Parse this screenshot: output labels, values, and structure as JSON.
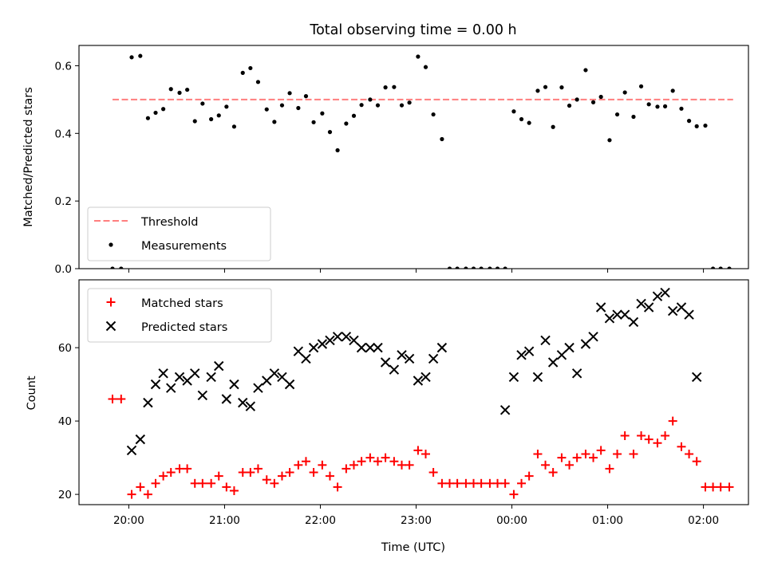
{
  "figure": {
    "title": "Total observing time = 0.00 h",
    "xlabel": "Time (UTC)",
    "x_ticks": [
      "20:00",
      "21:00",
      "22:00",
      "23:00",
      "00:00",
      "01:00",
      "02:00"
    ]
  },
  "chart_data": [
    {
      "type": "scatter",
      "title": "Total observing time = 0.00 h",
      "ylabel": "Matched/Predicted stars",
      "xlabel": "",
      "x_unit": "hours since 19:00 UTC",
      "xlim": [
        19.48,
        26.47
      ],
      "ylim": [
        0,
        0.66
      ],
      "y_ticks": [
        "0.0",
        "0.2",
        "0.4",
        "0.6"
      ],
      "y_tick_values": [
        0,
        0.2,
        0.4,
        0.6
      ],
      "legend": {
        "placement": "lower-left",
        "entries": [
          "Threshold",
          "Measurements"
        ]
      },
      "threshold": {
        "name": "Threshold",
        "value": 0.5,
        "x_range": [
          19.83,
          26.31
        ],
        "color": "#ff7f7f"
      },
      "series": [
        {
          "name": "Measurements",
          "color": "#000000",
          "points": [
            [
              19.83,
              0.0
            ],
            [
              19.92,
              0.0
            ],
            [
              20.03,
              0.625
            ],
            [
              20.12,
              0.629
            ],
            [
              20.2,
              0.445
            ],
            [
              20.28,
              0.461
            ],
            [
              20.36,
              0.472
            ],
            [
              20.44,
              0.531
            ],
            [
              20.53,
              0.52
            ],
            [
              20.61,
              0.529
            ],
            [
              20.69,
              0.436
            ],
            [
              20.77,
              0.488
            ],
            [
              20.86,
              0.442
            ],
            [
              20.94,
              0.453
            ],
            [
              21.02,
              0.479
            ],
            [
              21.1,
              0.42
            ],
            [
              21.19,
              0.579
            ],
            [
              21.27,
              0.593
            ],
            [
              21.35,
              0.552
            ],
            [
              21.44,
              0.471
            ],
            [
              21.52,
              0.434
            ],
            [
              21.6,
              0.483
            ],
            [
              21.68,
              0.519
            ],
            [
              21.77,
              0.475
            ],
            [
              21.85,
              0.51
            ],
            [
              21.93,
              0.433
            ],
            [
              22.02,
              0.459
            ],
            [
              22.1,
              0.404
            ],
            [
              22.18,
              0.35
            ],
            [
              22.27,
              0.429
            ],
            [
              22.35,
              0.452
            ],
            [
              22.43,
              0.484
            ],
            [
              22.52,
              0.5
            ],
            [
              22.6,
              0.483
            ],
            [
              22.68,
              0.536
            ],
            [
              22.77,
              0.537
            ],
            [
              22.85,
              0.483
            ],
            [
              22.93,
              0.491
            ],
            [
              23.02,
              0.627
            ],
            [
              23.1,
              0.596
            ],
            [
              23.18,
              0.456
            ],
            [
              23.27,
              0.383
            ],
            [
              23.35,
              0.0
            ],
            [
              23.43,
              0.0
            ],
            [
              23.52,
              0.0
            ],
            [
              23.6,
              0.0
            ],
            [
              23.68,
              0.0
            ],
            [
              23.77,
              0.0
            ],
            [
              23.85,
              0.0
            ],
            [
              23.93,
              0.0
            ],
            [
              24.02,
              0.465
            ],
            [
              24.1,
              0.442
            ],
            [
              24.18,
              0.431
            ],
            [
              24.27,
              0.526
            ],
            [
              24.35,
              0.537
            ],
            [
              24.43,
              0.419
            ],
            [
              24.52,
              0.536
            ],
            [
              24.6,
              0.482
            ],
            [
              24.68,
              0.5
            ],
            [
              24.77,
              0.587
            ],
            [
              24.85,
              0.492
            ],
            [
              24.93,
              0.508
            ],
            [
              25.02,
              0.38
            ],
            [
              25.1,
              0.456
            ],
            [
              25.18,
              0.521
            ],
            [
              25.27,
              0.449
            ],
            [
              25.35,
              0.539
            ],
            [
              25.43,
              0.486
            ],
            [
              25.52,
              0.479
            ],
            [
              25.6,
              0.48
            ],
            [
              25.68,
              0.526
            ],
            [
              25.77,
              0.473
            ],
            [
              25.85,
              0.437
            ],
            [
              25.93,
              0.421
            ],
            [
              26.02,
              0.423
            ],
            [
              26.1,
              0.0
            ],
            [
              26.18,
              0.0
            ],
            [
              26.27,
              0.0
            ]
          ]
        }
      ]
    },
    {
      "type": "scatter",
      "ylabel": "Count",
      "xlabel": "Time (UTC)",
      "x_unit": "hours since 19:00 UTC",
      "xlim": [
        19.48,
        26.47
      ],
      "ylim": [
        17.2,
        78.5
      ],
      "y_ticks": [
        "20",
        "40",
        "60"
      ],
      "y_tick_values": [
        20,
        40,
        60
      ],
      "legend": {
        "placement": "upper-left",
        "entries": [
          "Matched stars",
          "Predicted stars"
        ]
      },
      "series": [
        {
          "name": "Matched stars",
          "marker": "plus",
          "color": "#ff0000",
          "points": [
            [
              19.83,
              46
            ],
            [
              19.92,
              46
            ],
            [
              20.03,
              20
            ],
            [
              20.12,
              22
            ],
            [
              20.2,
              20
            ],
            [
              20.28,
              23
            ],
            [
              20.36,
              25
            ],
            [
              20.44,
              26
            ],
            [
              20.53,
              27
            ],
            [
              20.61,
              27
            ],
            [
              20.69,
              23
            ],
            [
              20.77,
              23
            ],
            [
              20.86,
              23
            ],
            [
              20.94,
              25
            ],
            [
              21.02,
              22
            ],
            [
              21.1,
              21
            ],
            [
              21.19,
              26
            ],
            [
              21.27,
              26
            ],
            [
              21.35,
              27
            ],
            [
              21.44,
              24
            ],
            [
              21.52,
              23
            ],
            [
              21.6,
              25
            ],
            [
              21.68,
              26
            ],
            [
              21.77,
              28
            ],
            [
              21.85,
              29
            ],
            [
              21.93,
              26
            ],
            [
              22.02,
              28
            ],
            [
              22.1,
              25
            ],
            [
              22.18,
              22
            ],
            [
              22.27,
              27
            ],
            [
              22.35,
              28
            ],
            [
              22.43,
              29
            ],
            [
              22.52,
              30
            ],
            [
              22.6,
              29
            ],
            [
              22.68,
              30
            ],
            [
              22.77,
              29
            ],
            [
              22.85,
              28
            ],
            [
              22.93,
              28
            ],
            [
              23.02,
              32
            ],
            [
              23.1,
              31
            ],
            [
              23.18,
              26
            ],
            [
              23.27,
              23
            ],
            [
              23.35,
              23
            ],
            [
              23.43,
              23
            ],
            [
              23.52,
              23
            ],
            [
              23.6,
              23
            ],
            [
              23.68,
              23
            ],
            [
              23.77,
              23
            ],
            [
              23.85,
              23
            ],
            [
              23.93,
              23
            ],
            [
              24.02,
              20
            ],
            [
              24.1,
              23
            ],
            [
              24.18,
              25
            ],
            [
              24.27,
              31
            ],
            [
              24.35,
              28
            ],
            [
              24.43,
              26
            ],
            [
              24.52,
              30
            ],
            [
              24.6,
              28
            ],
            [
              24.68,
              30
            ],
            [
              24.77,
              31
            ],
            [
              24.85,
              30
            ],
            [
              24.93,
              32
            ],
            [
              25.02,
              27
            ],
            [
              25.1,
              31
            ],
            [
              25.18,
              36
            ],
            [
              25.27,
              31
            ],
            [
              25.35,
              36
            ],
            [
              25.43,
              35
            ],
            [
              25.52,
              34
            ],
            [
              25.6,
              36
            ],
            [
              25.68,
              40
            ],
            [
              25.77,
              33
            ],
            [
              25.85,
              31
            ],
            [
              25.93,
              29
            ],
            [
              26.02,
              22
            ],
            [
              26.1,
              22
            ],
            [
              26.18,
              22
            ],
            [
              26.27,
              22
            ]
          ]
        },
        {
          "name": "Predicted stars",
          "marker": "x",
          "color": "#000000",
          "points": [
            [
              20.03,
              32
            ],
            [
              20.12,
              35
            ],
            [
              20.2,
              45
            ],
            [
              20.28,
              50
            ],
            [
              20.36,
              53
            ],
            [
              20.44,
              49
            ],
            [
              20.53,
              52
            ],
            [
              20.61,
              51
            ],
            [
              20.69,
              53
            ],
            [
              20.77,
              47
            ],
            [
              20.86,
              52
            ],
            [
              20.94,
              55
            ],
            [
              21.02,
              46
            ],
            [
              21.1,
              50
            ],
            [
              21.19,
              45
            ],
            [
              21.27,
              44
            ],
            [
              21.35,
              49
            ],
            [
              21.44,
              51
            ],
            [
              21.52,
              53
            ],
            [
              21.6,
              52
            ],
            [
              21.68,
              50
            ],
            [
              21.77,
              59
            ],
            [
              21.85,
              57
            ],
            [
              21.93,
              60
            ],
            [
              22.02,
              61
            ],
            [
              22.1,
              62
            ],
            [
              22.18,
              63
            ],
            [
              22.27,
              63
            ],
            [
              22.35,
              62
            ],
            [
              22.43,
              60
            ],
            [
              22.52,
              60
            ],
            [
              22.6,
              60
            ],
            [
              22.68,
              56
            ],
            [
              22.77,
              54
            ],
            [
              22.85,
              58
            ],
            [
              22.93,
              57
            ],
            [
              23.02,
              51
            ],
            [
              23.1,
              52
            ],
            [
              23.18,
              57
            ],
            [
              23.27,
              60
            ],
            [
              23.93,
              43
            ],
            [
              24.02,
              52
            ],
            [
              24.1,
              58
            ],
            [
              24.18,
              59
            ],
            [
              24.27,
              52
            ],
            [
              24.35,
              62
            ],
            [
              24.43,
              56
            ],
            [
              24.52,
              58
            ],
            [
              24.6,
              60
            ],
            [
              24.68,
              53
            ],
            [
              24.77,
              61
            ],
            [
              24.85,
              63
            ],
            [
              24.93,
              71
            ],
            [
              25.02,
              68
            ],
            [
              25.1,
              69
            ],
            [
              25.18,
              69
            ],
            [
              25.27,
              67
            ],
            [
              25.35,
              72
            ],
            [
              25.43,
              71
            ],
            [
              25.52,
              74
            ],
            [
              25.6,
              75
            ],
            [
              25.68,
              70
            ],
            [
              25.77,
              71
            ],
            [
              25.85,
              69
            ],
            [
              25.93,
              52
            ]
          ]
        }
      ]
    }
  ]
}
